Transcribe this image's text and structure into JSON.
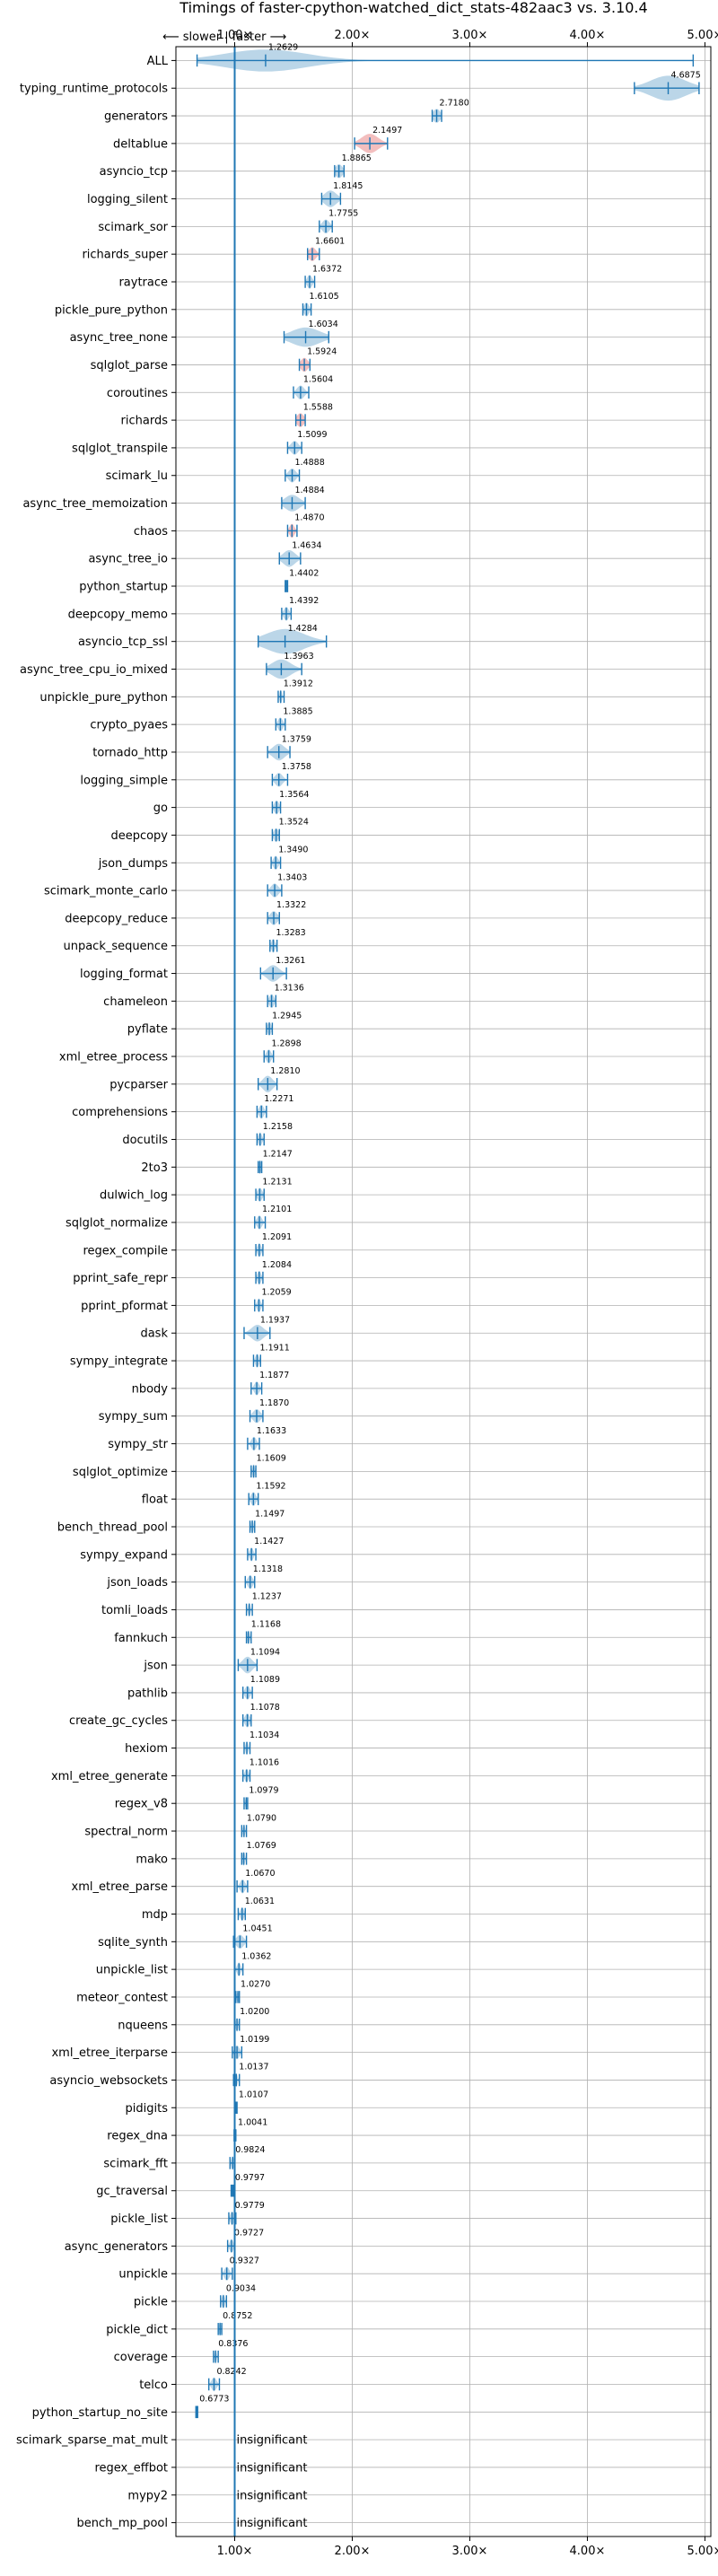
{
  "chart_data": {
    "type": "violin",
    "title": "Timings of faster-cpython-watched_dict_stats-482aac3 vs. 3.10.4",
    "top_annotation": "⟵ slower | faster ⟶",
    "xlim": [
      0.5,
      5.05
    ],
    "xticks": [
      1.0,
      2.0,
      3.0,
      4.0,
      5.0
    ],
    "xtick_labels": [
      "1.00×",
      "2.00×",
      "3.00×",
      "4.00×",
      "5.00×"
    ],
    "reference_line": 1.0,
    "grid": true,
    "colors": {
      "violin": "#1f77b4",
      "highlight": "#d62728",
      "grid": "#b0b0b0",
      "axis": "#000000"
    },
    "insignificant_label": "insignificant",
    "benchmarks": [
      {
        "name": "ALL",
        "value": 1.2629,
        "label": "1.2629",
        "range": [
          0.68,
          4.9
        ],
        "spread": 0.35,
        "width": 0.8
      },
      {
        "name": "typing_runtime_protocols",
        "value": 4.6875,
        "label": "4.6875",
        "range": [
          4.4,
          4.95
        ],
        "spread": 0.15,
        "width": 0.9
      },
      {
        "name": "generators",
        "value": 2.718,
        "label": "2.7180",
        "range": [
          2.68,
          2.76
        ],
        "spread": 0.03,
        "width": 0.5
      },
      {
        "name": "deltablue",
        "value": 2.1497,
        "label": "2.1497",
        "range": [
          2.02,
          2.3
        ],
        "spread": 0.07,
        "width": 0.7,
        "highlight": true
      },
      {
        "name": "asyncio_tcp",
        "value": 1.8865,
        "label": "1.8865",
        "range": [
          1.85,
          1.93
        ],
        "spread": 0.03,
        "width": 0.5
      },
      {
        "name": "logging_silent",
        "value": 1.8145,
        "label": "1.8145",
        "range": [
          1.74,
          1.9
        ],
        "spread": 0.05,
        "width": 0.6
      },
      {
        "name": "scimark_sor",
        "value": 1.7755,
        "label": "1.7755",
        "range": [
          1.72,
          1.83
        ],
        "spread": 0.03,
        "width": 0.5
      },
      {
        "name": "richards_super",
        "value": 1.6601,
        "label": "1.6601",
        "range": [
          1.62,
          1.72
        ],
        "spread": 0.03,
        "width": 0.5,
        "highlight": true
      },
      {
        "name": "raytrace",
        "value": 1.6372,
        "label": "1.6372",
        "range": [
          1.6,
          1.68
        ],
        "spread": 0.02,
        "width": 0.5
      },
      {
        "name": "pickle_pure_python",
        "value": 1.6105,
        "label": "1.6105",
        "range": [
          1.58,
          1.65
        ],
        "spread": 0.02,
        "width": 0.5
      },
      {
        "name": "async_tree_none",
        "value": 1.6034,
        "label": "1.6034",
        "range": [
          1.42,
          1.8
        ],
        "spread": 0.12,
        "width": 0.7
      },
      {
        "name": "sqlglot_parse",
        "value": 1.5924,
        "label": "1.5924",
        "range": [
          1.55,
          1.64
        ],
        "spread": 0.03,
        "width": 0.5,
        "highlight": true
      },
      {
        "name": "coroutines",
        "value": 1.5604,
        "label": "1.5604",
        "range": [
          1.5,
          1.63
        ],
        "spread": 0.03,
        "width": 0.5
      },
      {
        "name": "richards",
        "value": 1.5588,
        "label": "1.5588",
        "range": [
          1.52,
          1.6
        ],
        "spread": 0.03,
        "width": 0.5,
        "highlight": true
      },
      {
        "name": "sqlglot_transpile",
        "value": 1.5099,
        "label": "1.5099",
        "range": [
          1.45,
          1.57
        ],
        "spread": 0.03,
        "width": 0.5
      },
      {
        "name": "scimark_lu",
        "value": 1.4888,
        "label": "1.4888",
        "range": [
          1.43,
          1.55
        ],
        "spread": 0.03,
        "width": 0.5
      },
      {
        "name": "async_tree_memoization",
        "value": 1.4884,
        "label": "1.4884",
        "range": [
          1.4,
          1.6
        ],
        "spread": 0.06,
        "width": 0.6
      },
      {
        "name": "chaos",
        "value": 1.487,
        "label": "1.4870",
        "range": [
          1.45,
          1.53
        ],
        "spread": 0.02,
        "width": 0.5,
        "highlight": true
      },
      {
        "name": "async_tree_io",
        "value": 1.4634,
        "label": "1.4634",
        "range": [
          1.38,
          1.56
        ],
        "spread": 0.05,
        "width": 0.6
      },
      {
        "name": "python_startup",
        "value": 1.4402,
        "label": "1.4402",
        "range": [
          1.43,
          1.45
        ],
        "spread": 0.004,
        "width": 0.3
      },
      {
        "name": "deepcopy_memo",
        "value": 1.4392,
        "label": "1.4392",
        "range": [
          1.4,
          1.48
        ],
        "spread": 0.02,
        "width": 0.5
      },
      {
        "name": "asyncio_tcp_ssl",
        "value": 1.4284,
        "label": "1.4284",
        "range": [
          1.2,
          1.78
        ],
        "spread": 0.16,
        "width": 0.9
      },
      {
        "name": "async_tree_cpu_io_mixed",
        "value": 1.3963,
        "label": "1.3963",
        "range": [
          1.27,
          1.57
        ],
        "spread": 0.08,
        "width": 0.7
      },
      {
        "name": "unpickle_pure_python",
        "value": 1.3912,
        "label": "1.3912",
        "range": [
          1.37,
          1.42
        ],
        "spread": 0.01,
        "width": 0.5
      },
      {
        "name": "crypto_pyaes",
        "value": 1.3885,
        "label": "1.3885",
        "range": [
          1.35,
          1.43
        ],
        "spread": 0.02,
        "width": 0.5
      },
      {
        "name": "tornado_http",
        "value": 1.3759,
        "label": "1.3759",
        "range": [
          1.28,
          1.47
        ],
        "spread": 0.05,
        "width": 0.6
      },
      {
        "name": "logging_simple",
        "value": 1.3758,
        "label": "1.3758",
        "range": [
          1.32,
          1.45
        ],
        "spread": 0.03,
        "width": 0.5
      },
      {
        "name": "go",
        "value": 1.3564,
        "label": "1.3564",
        "range": [
          1.32,
          1.39
        ],
        "spread": 0.02,
        "width": 0.5
      },
      {
        "name": "deepcopy",
        "value": 1.3524,
        "label": "1.3524",
        "range": [
          1.32,
          1.38
        ],
        "spread": 0.02,
        "width": 0.5
      },
      {
        "name": "json_dumps",
        "value": 1.349,
        "label": "1.3490",
        "range": [
          1.31,
          1.39
        ],
        "spread": 0.02,
        "width": 0.5
      },
      {
        "name": "scimark_monte_carlo",
        "value": 1.3403,
        "label": "1.3403",
        "range": [
          1.28,
          1.4
        ],
        "spread": 0.03,
        "width": 0.5
      },
      {
        "name": "deepcopy_reduce",
        "value": 1.3322,
        "label": "1.3322",
        "range": [
          1.28,
          1.38
        ],
        "spread": 0.03,
        "width": 0.5
      },
      {
        "name": "unpack_sequence",
        "value": 1.3283,
        "label": "1.3283",
        "range": [
          1.3,
          1.36
        ],
        "spread": 0.015,
        "width": 0.5
      },
      {
        "name": "logging_format",
        "value": 1.3261,
        "label": "1.3261",
        "range": [
          1.22,
          1.44
        ],
        "spread": 0.05,
        "width": 0.6
      },
      {
        "name": "chameleon",
        "value": 1.3136,
        "label": "1.3136",
        "range": [
          1.28,
          1.35
        ],
        "spread": 0.02,
        "width": 0.5
      },
      {
        "name": "pyflate",
        "value": 1.2945,
        "label": "1.2945",
        "range": [
          1.27,
          1.32
        ],
        "spread": 0.015,
        "width": 0.5
      },
      {
        "name": "xml_etree_process",
        "value": 1.2898,
        "label": "1.2898",
        "range": [
          1.25,
          1.33
        ],
        "spread": 0.02,
        "width": 0.5
      },
      {
        "name": "pycparser",
        "value": 1.281,
        "label": "1.2810",
        "range": [
          1.2,
          1.36
        ],
        "spread": 0.04,
        "width": 0.6
      },
      {
        "name": "comprehensions",
        "value": 1.2271,
        "label": "1.2271",
        "range": [
          1.19,
          1.27
        ],
        "spread": 0.02,
        "width": 0.5
      },
      {
        "name": "docutils",
        "value": 1.2158,
        "label": "1.2158",
        "range": [
          1.19,
          1.25
        ],
        "spread": 0.015,
        "width": 0.5
      },
      {
        "name": "2to3",
        "value": 1.2147,
        "label": "1.2147",
        "range": [
          1.2,
          1.23
        ],
        "spread": 0.01,
        "width": 0.5
      },
      {
        "name": "dulwich_log",
        "value": 1.2131,
        "label": "1.2131",
        "range": [
          1.18,
          1.25
        ],
        "spread": 0.02,
        "width": 0.5
      },
      {
        "name": "sqlglot_normalize",
        "value": 1.2101,
        "label": "1.2101",
        "range": [
          1.17,
          1.26
        ],
        "spread": 0.02,
        "width": 0.5
      },
      {
        "name": "regex_compile",
        "value": 1.2091,
        "label": "1.2091",
        "range": [
          1.18,
          1.24
        ],
        "spread": 0.015,
        "width": 0.5
      },
      {
        "name": "pprint_safe_repr",
        "value": 1.2084,
        "label": "1.2084",
        "range": [
          1.18,
          1.24
        ],
        "spread": 0.015,
        "width": 0.5
      },
      {
        "name": "pprint_pformat",
        "value": 1.2059,
        "label": "1.2059",
        "range": [
          1.17,
          1.24
        ],
        "spread": 0.015,
        "width": 0.5
      },
      {
        "name": "dask",
        "value": 1.1937,
        "label": "1.1937",
        "range": [
          1.08,
          1.3
        ],
        "spread": 0.05,
        "width": 0.6
      },
      {
        "name": "sympy_integrate",
        "value": 1.1911,
        "label": "1.1911",
        "range": [
          1.16,
          1.22
        ],
        "spread": 0.015,
        "width": 0.5
      },
      {
        "name": "nbody",
        "value": 1.1877,
        "label": "1.1877",
        "range": [
          1.14,
          1.23
        ],
        "spread": 0.02,
        "width": 0.5
      },
      {
        "name": "sympy_sum",
        "value": 1.187,
        "label": "1.1870",
        "range": [
          1.13,
          1.24
        ],
        "spread": 0.03,
        "width": 0.5
      },
      {
        "name": "sympy_str",
        "value": 1.1633,
        "label": "1.1633",
        "range": [
          1.11,
          1.21
        ],
        "spread": 0.02,
        "width": 0.5
      },
      {
        "name": "sqlglot_optimize",
        "value": 1.1609,
        "label": "1.1609",
        "range": [
          1.14,
          1.18
        ],
        "spread": 0.01,
        "width": 0.5
      },
      {
        "name": "float",
        "value": 1.1592,
        "label": "1.1592",
        "range": [
          1.12,
          1.2
        ],
        "spread": 0.02,
        "width": 0.5
      },
      {
        "name": "bench_thread_pool",
        "value": 1.1497,
        "label": "1.1497",
        "range": [
          1.13,
          1.17
        ],
        "spread": 0.01,
        "width": 0.5
      },
      {
        "name": "sympy_expand",
        "value": 1.1427,
        "label": "1.1427",
        "range": [
          1.11,
          1.18
        ],
        "spread": 0.015,
        "width": 0.5
      },
      {
        "name": "json_loads",
        "value": 1.1318,
        "label": "1.1318",
        "range": [
          1.09,
          1.17
        ],
        "spread": 0.02,
        "width": 0.5
      },
      {
        "name": "tomli_loads",
        "value": 1.1237,
        "label": "1.1237",
        "range": [
          1.1,
          1.15
        ],
        "spread": 0.01,
        "width": 0.5
      },
      {
        "name": "fannkuch",
        "value": 1.1168,
        "label": "1.1168",
        "range": [
          1.1,
          1.14
        ],
        "spread": 0.01,
        "width": 0.5
      },
      {
        "name": "json",
        "value": 1.1094,
        "label": "1.1094",
        "range": [
          1.03,
          1.19
        ],
        "spread": 0.04,
        "width": 0.6
      },
      {
        "name": "pathlib",
        "value": 1.1089,
        "label": "1.1089",
        "range": [
          1.07,
          1.15
        ],
        "spread": 0.02,
        "width": 0.5
      },
      {
        "name": "create_gc_cycles",
        "value": 1.1078,
        "label": "1.1078",
        "range": [
          1.07,
          1.14
        ],
        "spread": 0.02,
        "width": 0.5
      },
      {
        "name": "hexiom",
        "value": 1.1034,
        "label": "1.1034",
        "range": [
          1.08,
          1.13
        ],
        "spread": 0.01,
        "width": 0.5
      },
      {
        "name": "xml_etree_generate",
        "value": 1.1016,
        "label": "1.1016",
        "range": [
          1.07,
          1.13
        ],
        "spread": 0.015,
        "width": 0.5
      },
      {
        "name": "regex_v8",
        "value": 1.0979,
        "label": "1.0979",
        "range": [
          1.08,
          1.11
        ],
        "spread": 0.008,
        "width": 0.4
      },
      {
        "name": "spectral_norm",
        "value": 1.079,
        "label": "1.0790",
        "range": [
          1.06,
          1.1
        ],
        "spread": 0.01,
        "width": 0.4
      },
      {
        "name": "mako",
        "value": 1.0769,
        "label": "1.0769",
        "range": [
          1.06,
          1.1
        ],
        "spread": 0.01,
        "width": 0.5
      },
      {
        "name": "xml_etree_parse",
        "value": 1.067,
        "label": "1.0670",
        "range": [
          1.02,
          1.11
        ],
        "spread": 0.02,
        "width": 0.5
      },
      {
        "name": "mdp",
        "value": 1.0631,
        "label": "1.0631",
        "range": [
          1.03,
          1.09
        ],
        "spread": 0.015,
        "width": 0.5
      },
      {
        "name": "sqlite_synth",
        "value": 1.0451,
        "label": "1.0451",
        "range": [
          0.99,
          1.1
        ],
        "spread": 0.03,
        "width": 0.5
      },
      {
        "name": "unpickle_list",
        "value": 1.0362,
        "label": "1.0362",
        "range": [
          1.0,
          1.07
        ],
        "spread": 0.015,
        "width": 0.5
      },
      {
        "name": "meteor_contest",
        "value": 1.027,
        "label": "1.0270",
        "range": [
          1.01,
          1.04
        ],
        "spread": 0.008,
        "width": 0.4
      },
      {
        "name": "nqueens",
        "value": 1.02,
        "label": "1.0200",
        "range": [
          1.0,
          1.04
        ],
        "spread": 0.01,
        "width": 0.5
      },
      {
        "name": "xml_etree_iterparse",
        "value": 1.0199,
        "label": "1.0199",
        "range": [
          0.98,
          1.06
        ],
        "spread": 0.02,
        "width": 0.5
      },
      {
        "name": "asyncio_websockets",
        "value": 1.0137,
        "label": "1.0137",
        "range": [
          0.99,
          1.04
        ],
        "spread": 0.01,
        "width": 0.5
      },
      {
        "name": "pidigits",
        "value": 1.0107,
        "label": "1.0107",
        "range": [
          1.0,
          1.02
        ],
        "spread": 0.005,
        "width": 0.4
      },
      {
        "name": "regex_dna",
        "value": 1.0041,
        "label": "1.0041",
        "range": [
          0.995,
          1.01
        ],
        "spread": 0.004,
        "width": 0.3
      },
      {
        "name": "scimark_fft",
        "value": 0.9824,
        "label": "0.9824",
        "range": [
          0.96,
          1.0
        ],
        "spread": 0.01,
        "width": 0.5
      },
      {
        "name": "gc_traversal",
        "value": 0.9797,
        "label": "0.9797",
        "range": [
          0.97,
          0.99
        ],
        "spread": 0.005,
        "width": 0.4
      },
      {
        "name": "pickle_list",
        "value": 0.9779,
        "label": "0.9779",
        "range": [
          0.95,
          1.01
        ],
        "spread": 0.015,
        "width": 0.5
      },
      {
        "name": "async_generators",
        "value": 0.9727,
        "label": "0.9727",
        "range": [
          0.94,
          1.0
        ],
        "spread": 0.015,
        "width": 0.5
      },
      {
        "name": "unpickle",
        "value": 0.9327,
        "label": "0.9327",
        "range": [
          0.89,
          0.98
        ],
        "spread": 0.02,
        "width": 0.5
      },
      {
        "name": "pickle",
        "value": 0.9034,
        "label": "0.9034",
        "range": [
          0.88,
          0.93
        ],
        "spread": 0.012,
        "width": 0.5
      },
      {
        "name": "pickle_dict",
        "value": 0.8752,
        "label": "0.8752",
        "range": [
          0.86,
          0.89
        ],
        "spread": 0.008,
        "width": 0.5
      },
      {
        "name": "coverage",
        "value": 0.8376,
        "label": "0.8376",
        "range": [
          0.82,
          0.86
        ],
        "spread": 0.008,
        "width": 0.5
      },
      {
        "name": "telco",
        "value": 0.8242,
        "label": "0.8242",
        "range": [
          0.78,
          0.87
        ],
        "spread": 0.02,
        "width": 0.5
      },
      {
        "name": "python_startup_no_site",
        "value": 0.6773,
        "label": "0.6773",
        "range": [
          0.67,
          0.685
        ],
        "spread": 0.003,
        "width": 0.3
      },
      {
        "name": "scimark_sparse_mat_mult",
        "value": null,
        "label": "insignificant"
      },
      {
        "name": "regex_effbot",
        "value": null,
        "label": "insignificant"
      },
      {
        "name": "mypy2",
        "value": null,
        "label": "insignificant"
      },
      {
        "name": "bench_mp_pool",
        "value": null,
        "label": "insignificant"
      }
    ]
  }
}
